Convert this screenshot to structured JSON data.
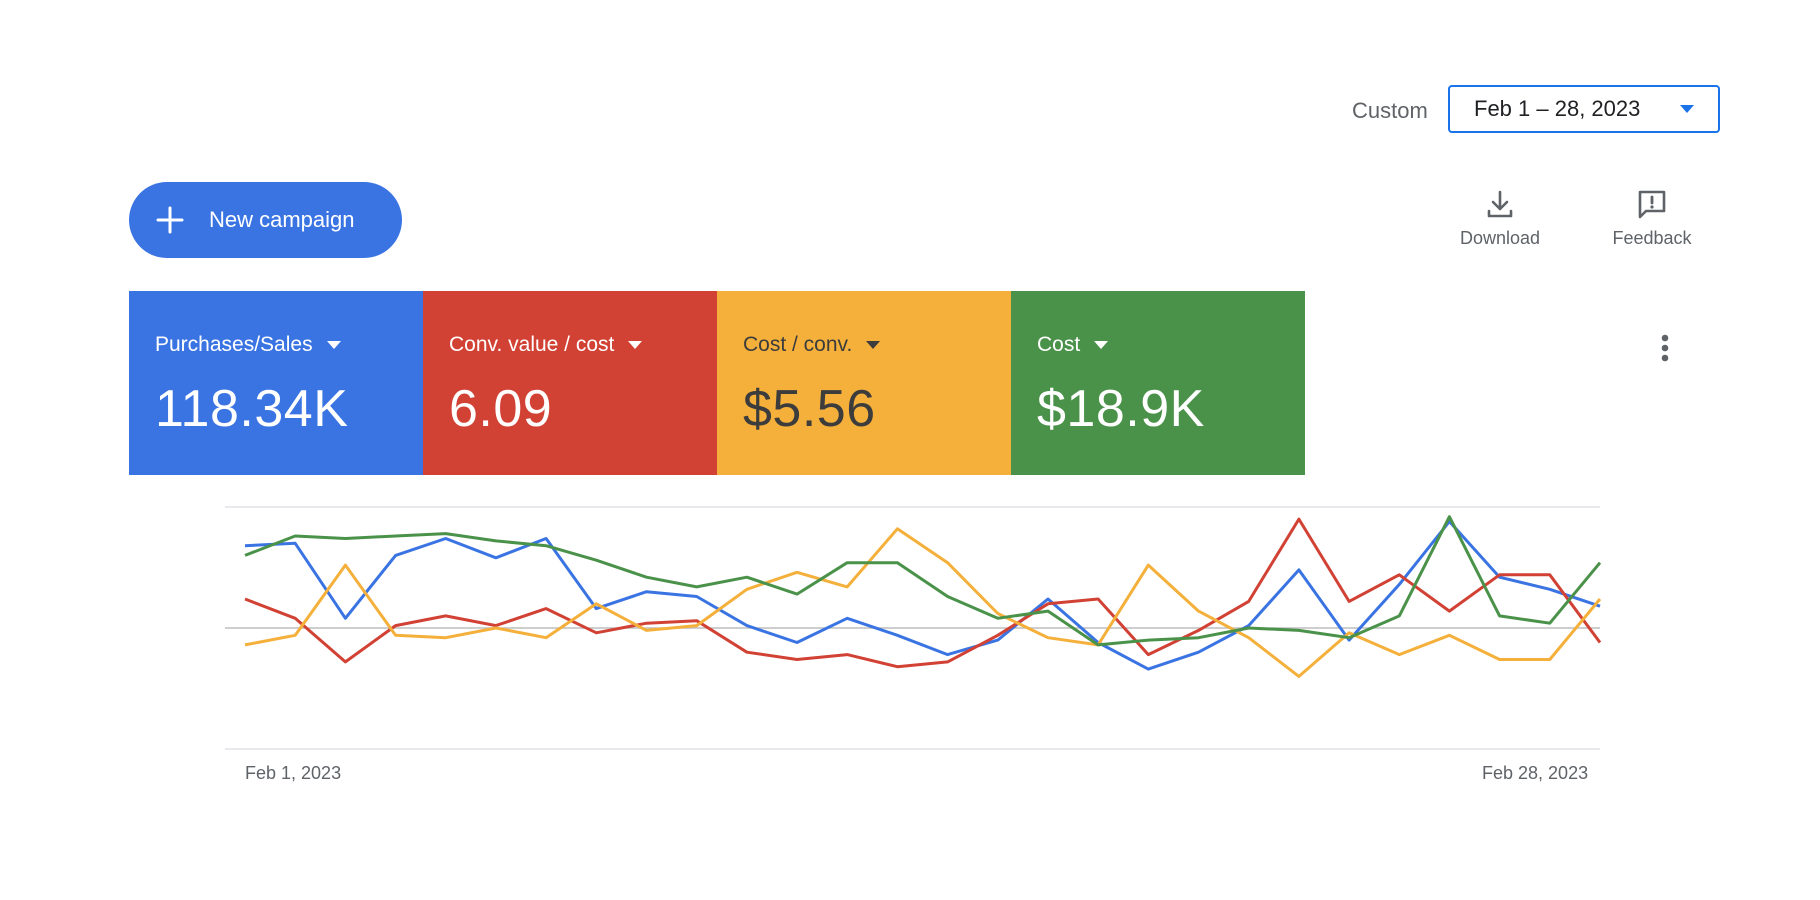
{
  "header": {
    "date_label": "Custom",
    "date_range": "Feb 1 – 28, 2023"
  },
  "toolbar": {
    "new_campaign_label": "New campaign",
    "download_label": "Download",
    "feedback_label": "Feedback"
  },
  "colors": {
    "accent": "#1a73e8",
    "blue": "#3a74e3",
    "red": "#d14134",
    "yellow": "#f4b03b",
    "green": "#4a924a"
  },
  "metrics": [
    {
      "label": "Purchases/Sales",
      "value": "118.34K",
      "color": "#3a74e3"
    },
    {
      "label": "Conv. value / cost",
      "value": "6.09",
      "color": "#d14134"
    },
    {
      "label": "Cost / conv.",
      "value": "$5.56",
      "color": "#f4b03b"
    },
    {
      "label": "Cost",
      "value": "$18.9K",
      "color": "#4a924a"
    }
  ],
  "icons": {
    "new_campaign": "plus-icon",
    "download": "download-icon",
    "feedback": "feedback-icon",
    "more": "more-vert-icon",
    "date_caret": "caret-down-icon"
  },
  "chart_data": {
    "type": "line",
    "x_start_label": "Feb 1, 2023",
    "x_end_label": "Feb 28, 2023",
    "x": [
      1,
      2,
      3,
      4,
      5,
      6,
      7,
      8,
      9,
      10,
      11,
      12,
      13,
      14,
      15,
      16,
      17,
      18,
      19,
      20,
      21,
      22,
      23,
      24,
      25,
      26,
      27,
      28
    ],
    "grid": true,
    "ylim": [
      0,
      100
    ],
    "series": [
      {
        "color": "#3a74e3",
        "values": [
          84,
          85,
          54,
          80,
          87,
          79,
          87,
          58,
          65,
          63,
          51,
          44,
          54,
          47,
          39,
          45,
          62,
          44,
          33,
          40,
          51,
          74,
          45,
          68,
          94,
          71,
          66,
          59
        ]
      },
      {
        "color": "#d14134",
        "values": [
          62,
          54,
          36,
          51,
          55,
          51,
          58,
          48,
          52,
          53,
          40,
          37,
          39,
          34,
          36,
          47,
          60,
          62,
          39,
          49,
          61,
          95,
          61,
          72,
          57,
          72,
          72,
          44
        ]
      },
      {
        "color": "#f4b03b",
        "values": [
          43,
          47,
          76,
          47,
          46,
          50,
          46,
          60,
          49,
          51,
          66,
          73,
          67,
          91,
          77,
          56,
          46,
          43,
          76,
          57,
          46,
          30,
          48,
          39,
          47,
          37,
          37,
          62
        ]
      },
      {
        "color": "#4a924a",
        "values": [
          80,
          88,
          87,
          88,
          89,
          86,
          84,
          78,
          71,
          67,
          71,
          64,
          77,
          77,
          63,
          54,
          57,
          43,
          45,
          46,
          50,
          49,
          46,
          55,
          96,
          55,
          52,
          77
        ]
      }
    ]
  }
}
